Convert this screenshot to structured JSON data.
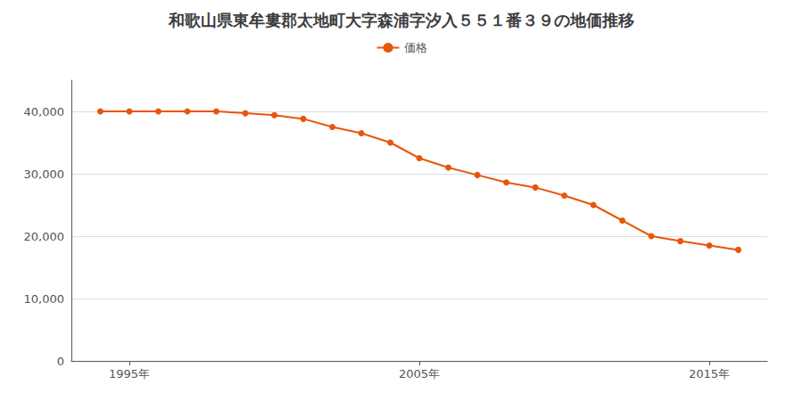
{
  "chart_data": {
    "type": "line",
    "title": "和歌山県東牟婁郡太地町大字森浦字汐入５５１番３９の地価推移",
    "x": [
      1994,
      1995,
      1996,
      1997,
      1998,
      1999,
      2000,
      2001,
      2002,
      2003,
      2004,
      2005,
      2006,
      2007,
      2008,
      2009,
      2010,
      2011,
      2012,
      2013,
      2014,
      2015,
      2016
    ],
    "series": [
      {
        "name": "価格",
        "color": "#e8560a",
        "values": [
          40000,
          40000,
          40000,
          40000,
          40000,
          39700,
          39400,
          38800,
          37500,
          36500,
          35000,
          32500,
          31000,
          29800,
          28600,
          27800,
          26500,
          25000,
          22500,
          20000,
          19200,
          18500,
          17800
        ]
      }
    ],
    "xlim": [
      1993,
      2017
    ],
    "xticks": [
      {
        "value": 1995,
        "label": "1995年"
      },
      {
        "value": 2005,
        "label": "2005年"
      },
      {
        "value": 2015,
        "label": "2015年"
      }
    ],
    "ylim": [
      0,
      45000
    ],
    "yticks": [
      0,
      {
        "value": 10000,
        "label": "10,000"
      },
      {
        "value": 20000,
        "label": "20,000"
      },
      {
        "value": 30000,
        "label": "30,000"
      },
      {
        "value": 40000,
        "label": "40,000"
      }
    ],
    "grid": true,
    "legend": "top",
    "marker": "circle"
  }
}
